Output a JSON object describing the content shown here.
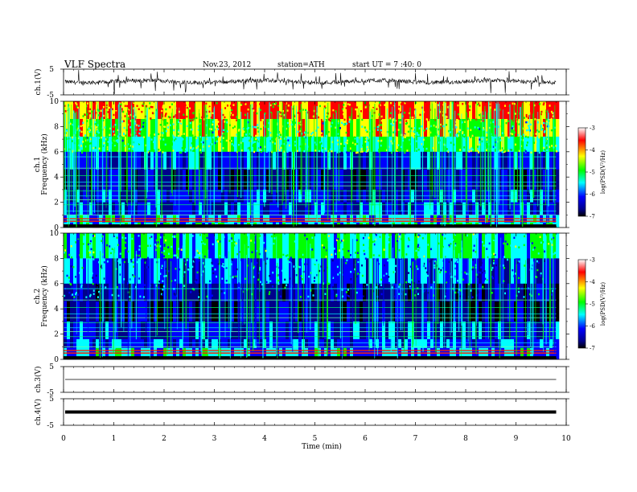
{
  "header": {
    "title": "VLF  Spectra",
    "date": "Nov.23, 2012",
    "station": "station=ATH",
    "start_ut": "start  UT  =   7 :40: 0"
  },
  "chart_data": [
    {
      "type": "line",
      "ylabel": "ch.1(V)",
      "ylim": [
        -5,
        5
      ],
      "yticks": [
        "5",
        "-5"
      ],
      "baseline": 0.2,
      "signal": "noisy waveform with frequent spikes"
    },
    {
      "type": "heatmap",
      "ylabel_channel": "ch.1",
      "ylabel": "Frequency  (kHz)",
      "ylim": [
        0,
        10
      ],
      "yticks": [
        "10",
        "8",
        "6",
        "4",
        "2",
        "0"
      ],
      "colorbar": {
        "label": "log(PSD(V²/Hz)",
        "range": [
          -7,
          -3
        ],
        "ticks": [
          "-3",
          "-4",
          "-5",
          "-6",
          "-7"
        ],
        "colors": [
          "#ffffff",
          "#ff0000",
          "#ffff00",
          "#00ff00",
          "#00ffff",
          "#0000ff",
          "#00008b",
          "#000000"
        ]
      }
    },
    {
      "type": "heatmap",
      "ylabel_channel": "ch.2",
      "ylabel": "Frequency  (kHz)",
      "ylim": [
        0,
        10
      ],
      "yticks": [
        "10",
        "8",
        "6",
        "4",
        "2",
        "0"
      ],
      "colorbar": {
        "label": "log(PSD(V²/Hz)",
        "range": [
          -7,
          -3
        ],
        "ticks": [
          "-3",
          "-4",
          "-5",
          "-6",
          "-7"
        ],
        "colors": [
          "#ffffff",
          "#ff0000",
          "#ffff00",
          "#00ff00",
          "#00ffff",
          "#0000ff",
          "#00008b",
          "#000000"
        ]
      }
    },
    {
      "type": "line",
      "ylabel": "ch.3(V)",
      "ylim": [
        -5,
        5
      ],
      "yticks": [
        "5",
        "-5"
      ],
      "baseline": 0,
      "signal": "flat"
    },
    {
      "type": "line",
      "ylabel": "ch.4(V)",
      "ylim": [
        -5,
        5
      ],
      "yticks": [
        "5",
        "-5"
      ],
      "baseline": 0,
      "signal": "thick flat band"
    }
  ],
  "x_axis": {
    "label": "Time  (min)",
    "range": [
      0,
      10
    ],
    "ticks": [
      "0",
      "1",
      "2",
      "3",
      "4",
      "5",
      "6",
      "7",
      "8",
      "9",
      "10"
    ],
    "data_end": 9.8
  }
}
